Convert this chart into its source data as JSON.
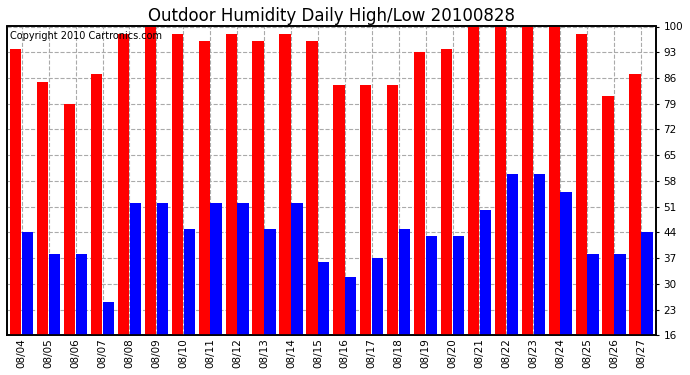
{
  "title": "Outdoor Humidity Daily High/Low 20100828",
  "copyright_text": "Copyright 2010 Cartronics.com",
  "dates": [
    "08/04",
    "08/05",
    "08/06",
    "08/07",
    "08/08",
    "08/09",
    "08/10",
    "08/11",
    "08/12",
    "08/13",
    "08/14",
    "08/15",
    "08/16",
    "08/17",
    "08/18",
    "08/19",
    "08/20",
    "08/21",
    "08/22",
    "08/23",
    "08/24",
    "08/25",
    "08/26",
    "08/27"
  ],
  "highs": [
    94,
    85,
    79,
    87,
    98,
    100,
    98,
    96,
    98,
    96,
    98,
    96,
    84,
    84,
    84,
    93,
    94,
    100,
    100,
    100,
    100,
    98,
    81,
    87
  ],
  "lows": [
    44,
    38,
    38,
    25,
    52,
    52,
    45,
    52,
    52,
    45,
    52,
    36,
    32,
    37,
    45,
    43,
    43,
    50,
    60,
    60,
    55,
    38,
    38,
    44
  ],
  "high_color": "#FF0000",
  "low_color": "#0000FF",
  "bg_color": "#FFFFFF",
  "grid_color": "#AAAAAA",
  "ylim_min": 16,
  "ylim_max": 100,
  "yticks": [
    16,
    23,
    30,
    37,
    44,
    51,
    58,
    65,
    72,
    79,
    86,
    93,
    100
  ],
  "title_fontsize": 12,
  "tick_fontsize": 7.5,
  "copyright_fontsize": 7
}
